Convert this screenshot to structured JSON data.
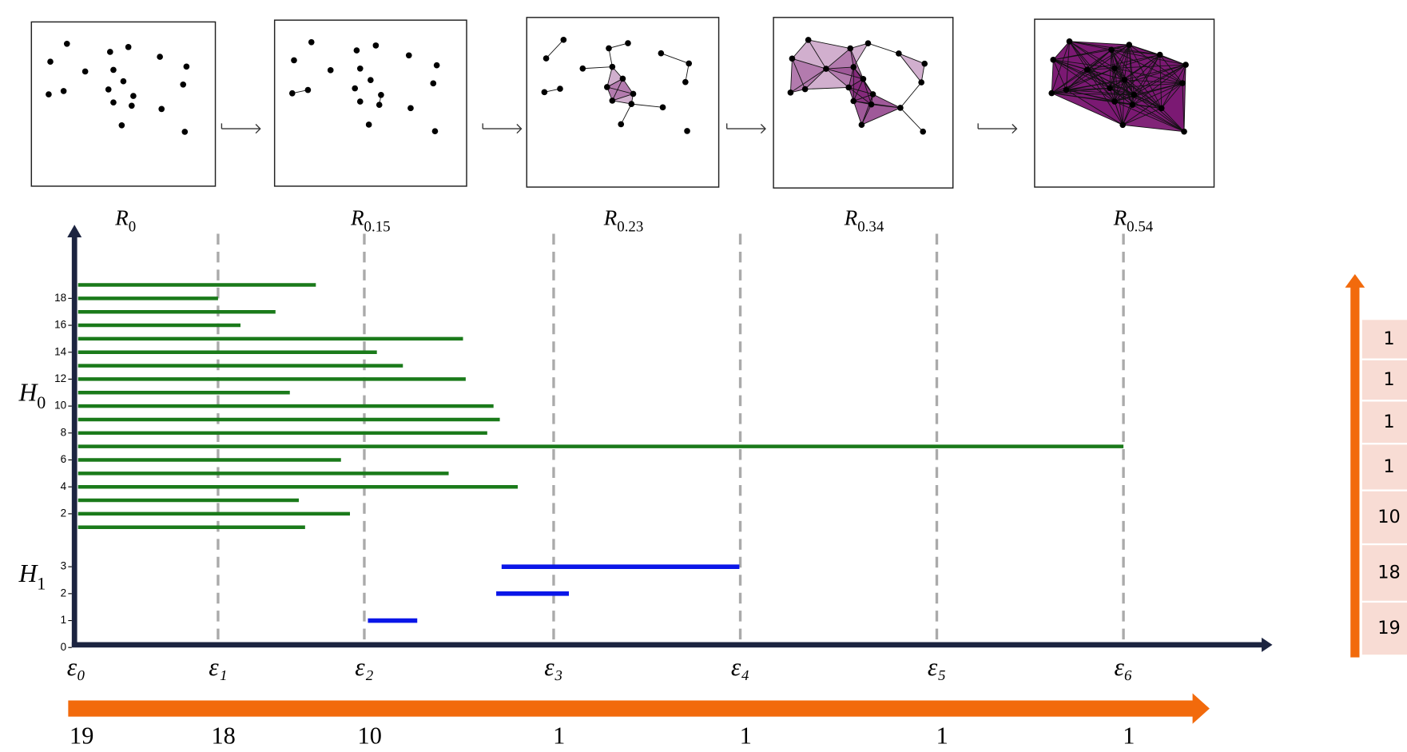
{
  "panels": [
    {
      "label": "R",
      "sub": "0"
    },
    {
      "label": "R",
      "sub": "0.15"
    },
    {
      "label": "R",
      "sub": "0.23"
    },
    {
      "label": "R",
      "sub": "0.34"
    },
    {
      "label": "R",
      "sub": "0.54"
    }
  ],
  "barcode": {
    "xlim": [
      0,
      1.33
    ],
    "xticks": [
      {
        "value": 0,
        "label": "ε₀"
      },
      {
        "value": 0.158,
        "label": "ε₁"
      },
      {
        "value": 0.321,
        "label": "ε₂"
      },
      {
        "value": 0.532,
        "label": "ε₃"
      },
      {
        "value": 0.74,
        "label": "ε₄"
      },
      {
        "value": 0.959,
        "label": "ε₅"
      },
      {
        "value": 1.167,
        "label": "ε₆"
      }
    ],
    "h0": {
      "label": "H",
      "sub": "0",
      "yticks": [
        2,
        4,
        6,
        8,
        10,
        12,
        14,
        16,
        18
      ],
      "bars": [
        {
          "start": 0,
          "end": 0.255
        },
        {
          "start": 0,
          "end": 0.305
        },
        {
          "start": 0,
          "end": 0.248
        },
        {
          "start": 0,
          "end": 0.492
        },
        {
          "start": 0,
          "end": 0.415
        },
        {
          "start": 0,
          "end": 0.295
        },
        {
          "start": 0,
          "end": 1.167
        },
        {
          "start": 0,
          "end": 0.458
        },
        {
          "start": 0,
          "end": 0.472
        },
        {
          "start": 0,
          "end": 0.465
        },
        {
          "start": 0,
          "end": 0.238
        },
        {
          "start": 0,
          "end": 0.434
        },
        {
          "start": 0,
          "end": 0.364
        },
        {
          "start": 0,
          "end": 0.335
        },
        {
          "start": 0,
          "end": 0.431
        },
        {
          "start": 0,
          "end": 0.183
        },
        {
          "start": 0,
          "end": 0.222
        },
        {
          "start": 0,
          "end": 0.158
        },
        {
          "start": 0,
          "end": 0.267
        }
      ]
    },
    "h1": {
      "label": "H",
      "sub": "1",
      "yticks": [
        0,
        1,
        2,
        3
      ],
      "bars": [
        {
          "start": 0.323,
          "end": 0.38
        },
        {
          "start": 0.466,
          "end": 0.549
        },
        {
          "start": 0.472,
          "end": 0.739
        }
      ]
    }
  },
  "bottom_counts": [
    19,
    18,
    10,
    1,
    1,
    1,
    1
  ],
  "side_counts": [
    1,
    1,
    1,
    1,
    10,
    18,
    19
  ]
}
